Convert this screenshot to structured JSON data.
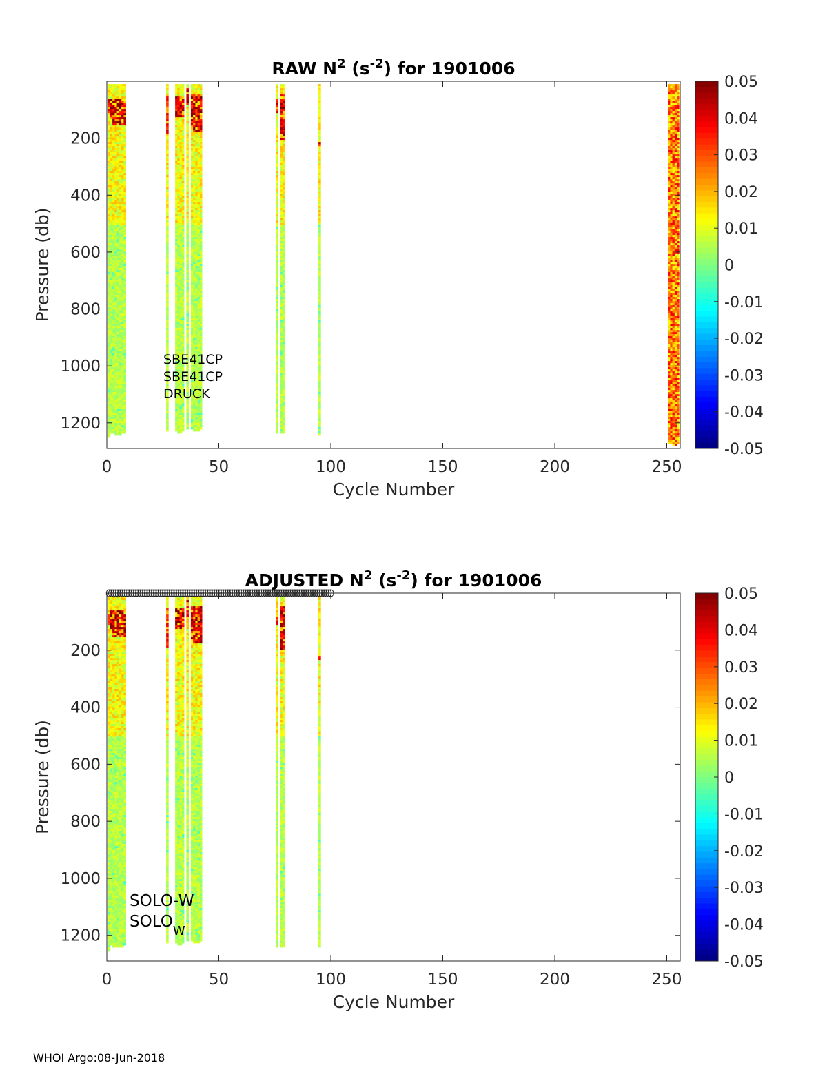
{
  "footer": "WHOI Argo:08-Jun-2018",
  "chart_data": [
    {
      "type": "heatmap",
      "title_prefix": "RAW N",
      "title_sup1": "2",
      "title_mid": " (s",
      "title_sup2": "-2",
      "title_suffix": ") for 1901006",
      "xlabel": "Cycle Number",
      "ylabel": "Pressure (db)",
      "xlim": [
        0,
        256
      ],
      "ylim": [
        1290,
        0
      ],
      "xticks": [
        0,
        50,
        100,
        150,
        200,
        250
      ],
      "yticks": [
        200,
        400,
        600,
        800,
        1000,
        1200
      ],
      "colorbar": {
        "ticks": [
          "0.05",
          "0.04",
          "0.03",
          "0.02",
          "0.01",
          "0",
          "-0.01",
          "-0.02",
          "-0.03",
          "-0.04",
          "-0.05"
        ],
        "range": [
          -0.05,
          0.05
        ],
        "colormap": "jet"
      },
      "annotation_lines": [
        "SBE41CP",
        "SBE41CP",
        "DRUCK"
      ],
      "profiles": [
        {
          "cycle": 1,
          "pmax": 1250,
          "strong_top": 60,
          "strong_bottom": 110,
          "strength": 0.6
        },
        {
          "cycle": 2,
          "pmax": 1230,
          "strong_top": 55,
          "strong_bottom": 130,
          "strength": 0.9
        },
        {
          "cycle": 3,
          "pmax": 1235,
          "strong_top": 60,
          "strong_bottom": 150,
          "strength": 1.0
        },
        {
          "cycle": 4,
          "pmax": 1240,
          "strong_top": 60,
          "strong_bottom": 150,
          "strength": 1.0
        },
        {
          "cycle": 5,
          "pmax": 1240,
          "strong_top": 60,
          "strong_bottom": 150,
          "strength": 1.0
        },
        {
          "cycle": 6,
          "pmax": 1240,
          "strong_top": 60,
          "strong_bottom": 150,
          "strength": 1.0
        },
        {
          "cycle": 7,
          "pmax": 1235,
          "strong_top": 60,
          "strong_bottom": 150,
          "strength": 1.0
        },
        {
          "cycle": 8,
          "pmax": 1230,
          "strong_top": 70,
          "strong_bottom": 150,
          "strength": 1.0
        },
        {
          "cycle": 27,
          "pmax": 1225,
          "strong_top": 50,
          "strong_bottom": 190,
          "strength": 0.5
        },
        {
          "cycle": 31,
          "pmax": 1225,
          "strong_top": 50,
          "strong_bottom": 120,
          "strength": 0.9
        },
        {
          "cycle": 32,
          "pmax": 1230,
          "strong_top": 50,
          "strong_bottom": 120,
          "strength": 0.9
        },
        {
          "cycle": 33,
          "pmax": 1230,
          "strong_top": 50,
          "strong_bottom": 120,
          "strength": 0.9
        },
        {
          "cycle": 34,
          "pmax": 1225,
          "strong_top": 50,
          "strong_bottom": 120,
          "strength": 0.9
        },
        {
          "cycle": 36,
          "pmax": 1220,
          "strong_top": 20,
          "strong_bottom": 80,
          "strength": 0.8
        },
        {
          "cycle": 38,
          "pmax": 1220,
          "strong_top": 40,
          "strong_bottom": 160,
          "strength": 1.0
        },
        {
          "cycle": 39,
          "pmax": 1225,
          "strong_top": 40,
          "strong_bottom": 170,
          "strength": 1.0
        },
        {
          "cycle": 40,
          "pmax": 1225,
          "strong_top": 40,
          "strong_bottom": 170,
          "strength": 1.0
        },
        {
          "cycle": 41,
          "pmax": 1225,
          "strong_top": 40,
          "strong_bottom": 170,
          "strength": 1.0
        },
        {
          "cycle": 42,
          "pmax": 1220,
          "strong_top": 40,
          "strong_bottom": 170,
          "strength": 0.9
        },
        {
          "cycle": 76,
          "pmax": 1235,
          "strong_top": 60,
          "strong_bottom": 110,
          "strength": 0.6
        },
        {
          "cycle": 78,
          "pmax": 1235,
          "strong_top": 40,
          "strong_bottom": 200,
          "strength": 0.9
        },
        {
          "cycle": 79,
          "pmax": 1235,
          "strong_top": 40,
          "strong_bottom": 200,
          "strength": 0.9
        },
        {
          "cycle": 95,
          "pmax": 1240,
          "strong_top": 210,
          "strong_bottom": 230,
          "strength": 0.7
        },
        {
          "cycle": 251,
          "pmax": 1270,
          "strong_top": 10,
          "strong_bottom": 300,
          "strength": 1.0
        },
        {
          "cycle": 252,
          "pmax": 1270,
          "strong_top": 10,
          "strong_bottom": 300,
          "strength": 1.0
        },
        {
          "cycle": 253,
          "pmax": 1275,
          "strong_top": 10,
          "strong_bottom": 300,
          "strength": 1.0
        },
        {
          "cycle": 254,
          "pmax": 1275,
          "strong_top": 10,
          "strong_bottom": 300,
          "strength": 1.0
        },
        {
          "cycle": 255,
          "pmax": 1270,
          "strong_top": 10,
          "strong_bottom": 300,
          "strength": 0.9
        }
      ],
      "markers": []
    },
    {
      "type": "heatmap",
      "title_prefix": "ADJUSTED N",
      "title_sup1": "2",
      "title_mid": " (s",
      "title_sup2": "-2",
      "title_suffix": ") for 1901006",
      "xlabel": "Cycle Number",
      "ylabel": "Pressure (db)",
      "xlim": [
        0,
        256
      ],
      "ylim": [
        1290,
        0
      ],
      "xticks": [
        0,
        50,
        100,
        150,
        200,
        250
      ],
      "yticks": [
        200,
        400,
        600,
        800,
        1000,
        1200
      ],
      "colorbar": {
        "ticks": [
          "0.05",
          "0.04",
          "0.03",
          "0.02",
          "0.01",
          "0",
          "-0.01",
          "-0.02",
          "-0.03",
          "-0.04",
          "-0.05"
        ],
        "range": [
          -0.05,
          0.05
        ],
        "colormap": "jet"
      },
      "annotation_lines": [
        "SOLO-W",
        "SOLO"
      ],
      "annotation_subscript": "W",
      "profiles": [
        {
          "cycle": 1,
          "pmax": 1250,
          "strong_top": 60,
          "strong_bottom": 110,
          "strength": 0.6
        },
        {
          "cycle": 2,
          "pmax": 1230,
          "strong_top": 55,
          "strong_bottom": 130,
          "strength": 0.9
        },
        {
          "cycle": 3,
          "pmax": 1235,
          "strong_top": 60,
          "strong_bottom": 150,
          "strength": 1.0
        },
        {
          "cycle": 4,
          "pmax": 1240,
          "strong_top": 60,
          "strong_bottom": 150,
          "strength": 1.0
        },
        {
          "cycle": 5,
          "pmax": 1240,
          "strong_top": 60,
          "strong_bottom": 150,
          "strength": 1.0
        },
        {
          "cycle": 6,
          "pmax": 1240,
          "strong_top": 60,
          "strong_bottom": 150,
          "strength": 1.0
        },
        {
          "cycle": 7,
          "pmax": 1235,
          "strong_top": 60,
          "strong_bottom": 150,
          "strength": 1.0
        },
        {
          "cycle": 8,
          "pmax": 1230,
          "strong_top": 70,
          "strong_bottom": 150,
          "strength": 1.0
        },
        {
          "cycle": 27,
          "pmax": 1225,
          "strong_top": 50,
          "strong_bottom": 190,
          "strength": 0.5
        },
        {
          "cycle": 31,
          "pmax": 1225,
          "strong_top": 50,
          "strong_bottom": 120,
          "strength": 0.9
        },
        {
          "cycle": 32,
          "pmax": 1230,
          "strong_top": 50,
          "strong_bottom": 120,
          "strength": 0.9
        },
        {
          "cycle": 33,
          "pmax": 1230,
          "strong_top": 50,
          "strong_bottom": 120,
          "strength": 0.9
        },
        {
          "cycle": 34,
          "pmax": 1225,
          "strong_top": 50,
          "strong_bottom": 120,
          "strength": 0.9
        },
        {
          "cycle": 36,
          "pmax": 1220,
          "strong_top": 20,
          "strong_bottom": 80,
          "strength": 0.8
        },
        {
          "cycle": 38,
          "pmax": 1220,
          "strong_top": 40,
          "strong_bottom": 160,
          "strength": 1.0
        },
        {
          "cycle": 39,
          "pmax": 1225,
          "strong_top": 40,
          "strong_bottom": 170,
          "strength": 1.0
        },
        {
          "cycle": 40,
          "pmax": 1225,
          "strong_top": 40,
          "strong_bottom": 170,
          "strength": 1.0
        },
        {
          "cycle": 41,
          "pmax": 1225,
          "strong_top": 40,
          "strong_bottom": 170,
          "strength": 1.0
        },
        {
          "cycle": 42,
          "pmax": 1220,
          "strong_top": 40,
          "strong_bottom": 170,
          "strength": 0.9
        },
        {
          "cycle": 76,
          "pmax": 1235,
          "strong_top": 60,
          "strong_bottom": 110,
          "strength": 0.6
        },
        {
          "cycle": 78,
          "pmax": 1235,
          "strong_top": 40,
          "strong_bottom": 200,
          "strength": 0.9
        },
        {
          "cycle": 79,
          "pmax": 1235,
          "strong_top": 40,
          "strong_bottom": 200,
          "strength": 0.9
        },
        {
          "cycle": 95,
          "pmax": 1240,
          "strong_top": 210,
          "strong_bottom": 230,
          "strength": 0.7
        }
      ],
      "markers": {
        "pressure": 0,
        "symbol": "circle",
        "cycles": [
          1,
          2,
          3,
          4,
          5,
          6,
          7,
          8,
          9,
          10,
          11,
          12,
          13,
          14,
          15,
          16,
          17,
          18,
          19,
          20,
          21,
          22,
          23,
          24,
          25,
          26,
          27,
          28,
          29,
          30,
          31,
          32,
          33,
          34,
          35,
          36,
          37,
          38,
          39,
          40,
          41,
          42,
          43,
          44,
          45,
          46,
          47,
          48,
          49,
          50,
          51,
          52,
          53,
          54,
          55,
          56,
          57,
          58,
          59,
          60,
          61,
          62,
          63,
          64,
          65,
          66,
          67,
          68,
          69,
          70,
          71,
          72,
          73,
          74,
          75,
          76,
          77,
          78,
          79,
          80,
          81,
          82,
          83,
          84,
          85,
          86,
          87,
          88,
          89,
          90,
          91,
          92,
          93,
          94,
          95,
          96,
          97,
          98,
          99,
          100
        ]
      }
    }
  ]
}
